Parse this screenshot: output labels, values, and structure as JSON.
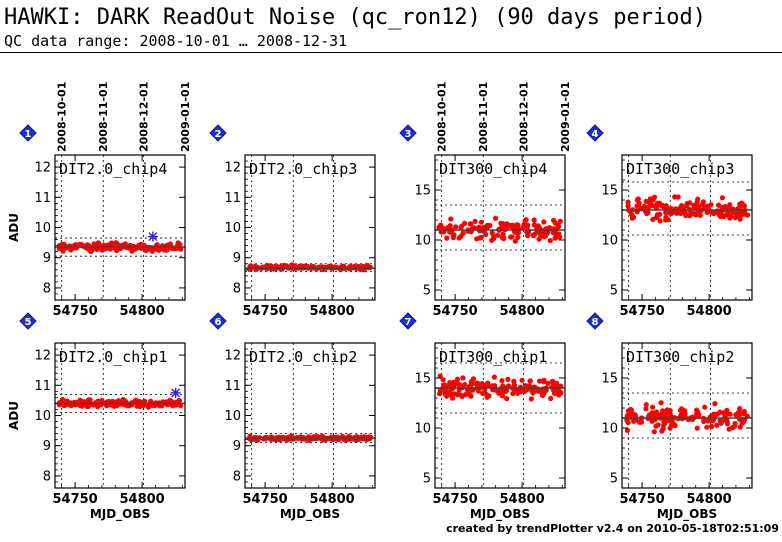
{
  "header": {
    "title": "HAWKI: DARK ReadOut Noise (qc_ron12) (90 days period)",
    "subtitle": "QC data range: 2008-10-01 … 2008-12-31"
  },
  "footer": "created by trendPlotter v2.4 on 2010-05-18T02:51:09",
  "chart_data": [
    {
      "type": "scatter",
      "badge": "1",
      "title": "DIT2.0_chip4",
      "xlabel": "",
      "ylabel": "ADU",
      "xlim": [
        54735,
        54832
      ],
      "ylim": [
        7.6,
        12.4
      ],
      "yticks": [
        8,
        9,
        10,
        11,
        12
      ],
      "xticks": [
        54750,
        54800
      ],
      "date_ticks": [
        "2008-10-01",
        "2008-11-01",
        "2008-12-01",
        "2009-01-01"
      ],
      "mean": 9.35,
      "band": [
        9.05,
        9.65
      ],
      "center": 9.35,
      "spread": 0.12,
      "outliers": [
        {
          "x": 54808,
          "y": 9.7
        }
      ]
    },
    {
      "type": "scatter",
      "badge": "2",
      "title": "DIT2.0_chip3",
      "xlabel": "",
      "ylabel": "",
      "xlim": [
        54735,
        54832
      ],
      "ylim": [
        7.6,
        12.4
      ],
      "yticks": [
        8,
        9,
        10,
        11,
        12
      ],
      "xticks": [
        54750,
        54800
      ],
      "date_ticks": [],
      "mean": 8.65,
      "band": [
        8.55,
        8.8
      ],
      "center": 8.68,
      "spread": 0.06,
      "outliers": []
    },
    {
      "type": "scatter",
      "badge": "3",
      "title": "DIT300_chip4",
      "xlabel": "",
      "ylabel": "",
      "xlim": [
        54735,
        54832
      ],
      "ylim": [
        4,
        18.5
      ],
      "yticks": [
        5,
        10,
        15
      ],
      "xticks": [
        54750,
        54800
      ],
      "date_ticks": [
        "2008-10-01",
        "2008-11-01",
        "2008-12-01",
        "2009-01-01"
      ],
      "mean": 11,
      "band": [
        9,
        13.5
      ],
      "center": 11,
      "spread": 1.0,
      "outliers": []
    },
    {
      "type": "scatter",
      "badge": "4",
      "title": "DIT300_chip3",
      "xlabel": "",
      "ylabel": "",
      "xlim": [
        54735,
        54832
      ],
      "ylim": [
        4,
        18.5
      ],
      "yticks": [
        5,
        10,
        15
      ],
      "xticks": [
        54750,
        54800
      ],
      "date_ticks": [],
      "mean": 13,
      "band": [
        10.5,
        15.8
      ],
      "center": 13,
      "spread": 1.0,
      "outliers": []
    },
    {
      "type": "scatter",
      "badge": "5",
      "title": "DIT2.0_chip1",
      "xlabel": "MJD_OBS",
      "ylabel": "ADU",
      "xlim": [
        54735,
        54832
      ],
      "ylim": [
        7.6,
        12.4
      ],
      "yticks": [
        8,
        9,
        10,
        11,
        12
      ],
      "xticks": [
        54750,
        54800
      ],
      "date_ticks": [],
      "mean": 10.4,
      "band": [
        10.1,
        10.7
      ],
      "center": 10.4,
      "spread": 0.1,
      "outliers": [
        {
          "x": 54825,
          "y": 10.75
        }
      ]
    },
    {
      "type": "scatter",
      "badge": "6",
      "title": "DIT2.0_chip2",
      "xlabel": "MJD_OBS",
      "ylabel": "",
      "xlim": [
        54735,
        54832
      ],
      "ylim": [
        7.6,
        12.4
      ],
      "yticks": [
        8,
        9,
        10,
        11,
        12
      ],
      "xticks": [
        54750,
        54800
      ],
      "date_ticks": [],
      "mean": 9.25,
      "band": [
        9.1,
        9.4
      ],
      "center": 9.25,
      "spread": 0.06,
      "outliers": []
    },
    {
      "type": "scatter",
      "badge": "7",
      "title": "DIT300_chip1",
      "xlabel": "MJD_OBS",
      "ylabel": "",
      "xlim": [
        54735,
        54832
      ],
      "ylim": [
        4,
        18.5
      ],
      "yticks": [
        5,
        10,
        15
      ],
      "xticks": [
        54750,
        54800
      ],
      "date_ticks": [],
      "mean": 14,
      "band": [
        11.5,
        16.5
      ],
      "center": 14,
      "spread": 1.0,
      "outliers": []
    },
    {
      "type": "scatter",
      "badge": "8",
      "title": "DIT300_chip2",
      "xlabel": "MJD_OBS",
      "ylabel": "",
      "xlim": [
        54735,
        54832
      ],
      "ylim": [
        4,
        18.5
      ],
      "yticks": [
        5,
        10,
        15
      ],
      "xticks": [
        54750,
        54800
      ],
      "date_ticks": [],
      "mean": 11,
      "band": [
        9,
        13.5
      ],
      "center": 11,
      "spread": 1.0,
      "outliers": []
    }
  ]
}
